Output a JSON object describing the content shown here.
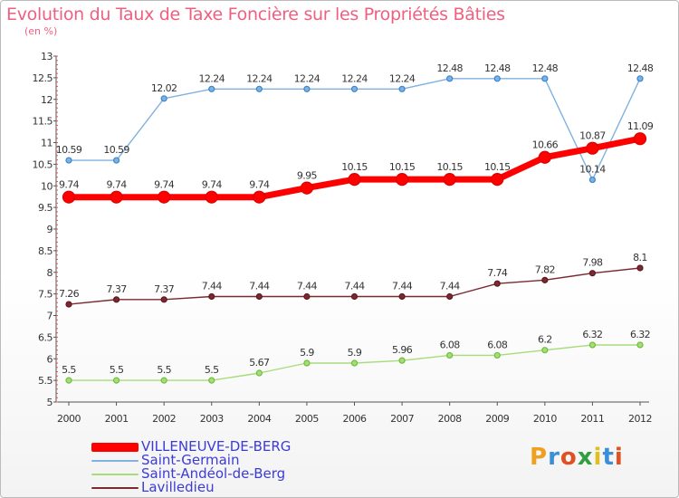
{
  "header": {
    "title": "Evolution du Taux de Taxe Foncière sur les Propriétés Bâties",
    "subtitle": "(en %)"
  },
  "brand": {
    "text": "Proxiti",
    "colors": [
      "#f0a020",
      "#3b8fd8",
      "#e05020",
      "#2f9f3f",
      "#e0c020",
      "#3b8fd8",
      "#e05020"
    ]
  },
  "chart_data": {
    "type": "line",
    "title": "Evolution du Taux de Taxe Foncière sur les Propriétés Bâties",
    "subtitle": "(en %)",
    "xlabel": "",
    "ylabel": "",
    "x": [
      "2000",
      "2001",
      "2002",
      "2003",
      "2004",
      "2005",
      "2006",
      "2007",
      "2008",
      "2009",
      "2010",
      "2011",
      "2012"
    ],
    "ylim": [
      5,
      13
    ],
    "yticks": [
      "5",
      "5.5",
      "6",
      "6.5",
      "7",
      "7.5",
      "8",
      "8.5",
      "9",
      "9.5",
      "10",
      "10.5",
      "11",
      "11.5",
      "12",
      "12.5",
      "13"
    ],
    "grid": false,
    "legend_position": "bottom-left",
    "series": [
      {
        "name": "VILLENEUVE-DE-BERG",
        "color": "#ff0000",
        "values": [
          9.74,
          9.74,
          9.74,
          9.74,
          9.74,
          9.95,
          10.15,
          10.15,
          10.15,
          10.15,
          10.66,
          10.87,
          11.09
        ],
        "labels": [
          "9.74",
          "9.74",
          "9.74",
          "9.74",
          "9.74",
          "9.95",
          "10.15",
          "10.15",
          "10.15",
          "10.15",
          "10.66",
          "10.87",
          "11.09"
        ]
      },
      {
        "name": "Saint-Germain",
        "color": "#7fb2e0",
        "values": [
          10.59,
          10.59,
          12.02,
          12.24,
          12.24,
          12.24,
          12.24,
          12.24,
          12.48,
          12.48,
          12.48,
          10.14,
          12.48
        ],
        "labels": [
          "10.59",
          "10.59",
          "12.02",
          "12.24",
          "12.24",
          "12.24",
          "12.24",
          "12.24",
          "12.48",
          "12.48",
          "12.48",
          "10.14",
          "12.48"
        ]
      },
      {
        "name": "Saint-Andéol-de-Berg",
        "color": "#a8dc7a",
        "values": [
          5.5,
          5.5,
          5.5,
          5.5,
          5.67,
          5.9,
          5.9,
          5.96,
          6.08,
          6.08,
          6.2,
          6.32,
          6.32
        ],
        "labels": [
          "5.5",
          "5.5",
          "5.5",
          "5.5",
          "5.67",
          "5.9",
          "5.9",
          "5.96",
          "6.08",
          "6.08",
          "6.2",
          "6.32",
          "6.32"
        ]
      },
      {
        "name": "Lavilledieu",
        "color": "#7a2a30",
        "values": [
          7.26,
          7.37,
          7.37,
          7.44,
          7.44,
          7.44,
          7.44,
          7.44,
          7.44,
          7.74,
          7.82,
          7.98,
          8.1
        ],
        "labels": [
          "7.26",
          "7.37",
          "7.37",
          "7.44",
          "7.44",
          "7.44",
          "7.44",
          "7.44",
          "7.44",
          "7.74",
          "7.82",
          "7.98",
          "8.1"
        ]
      }
    ]
  }
}
